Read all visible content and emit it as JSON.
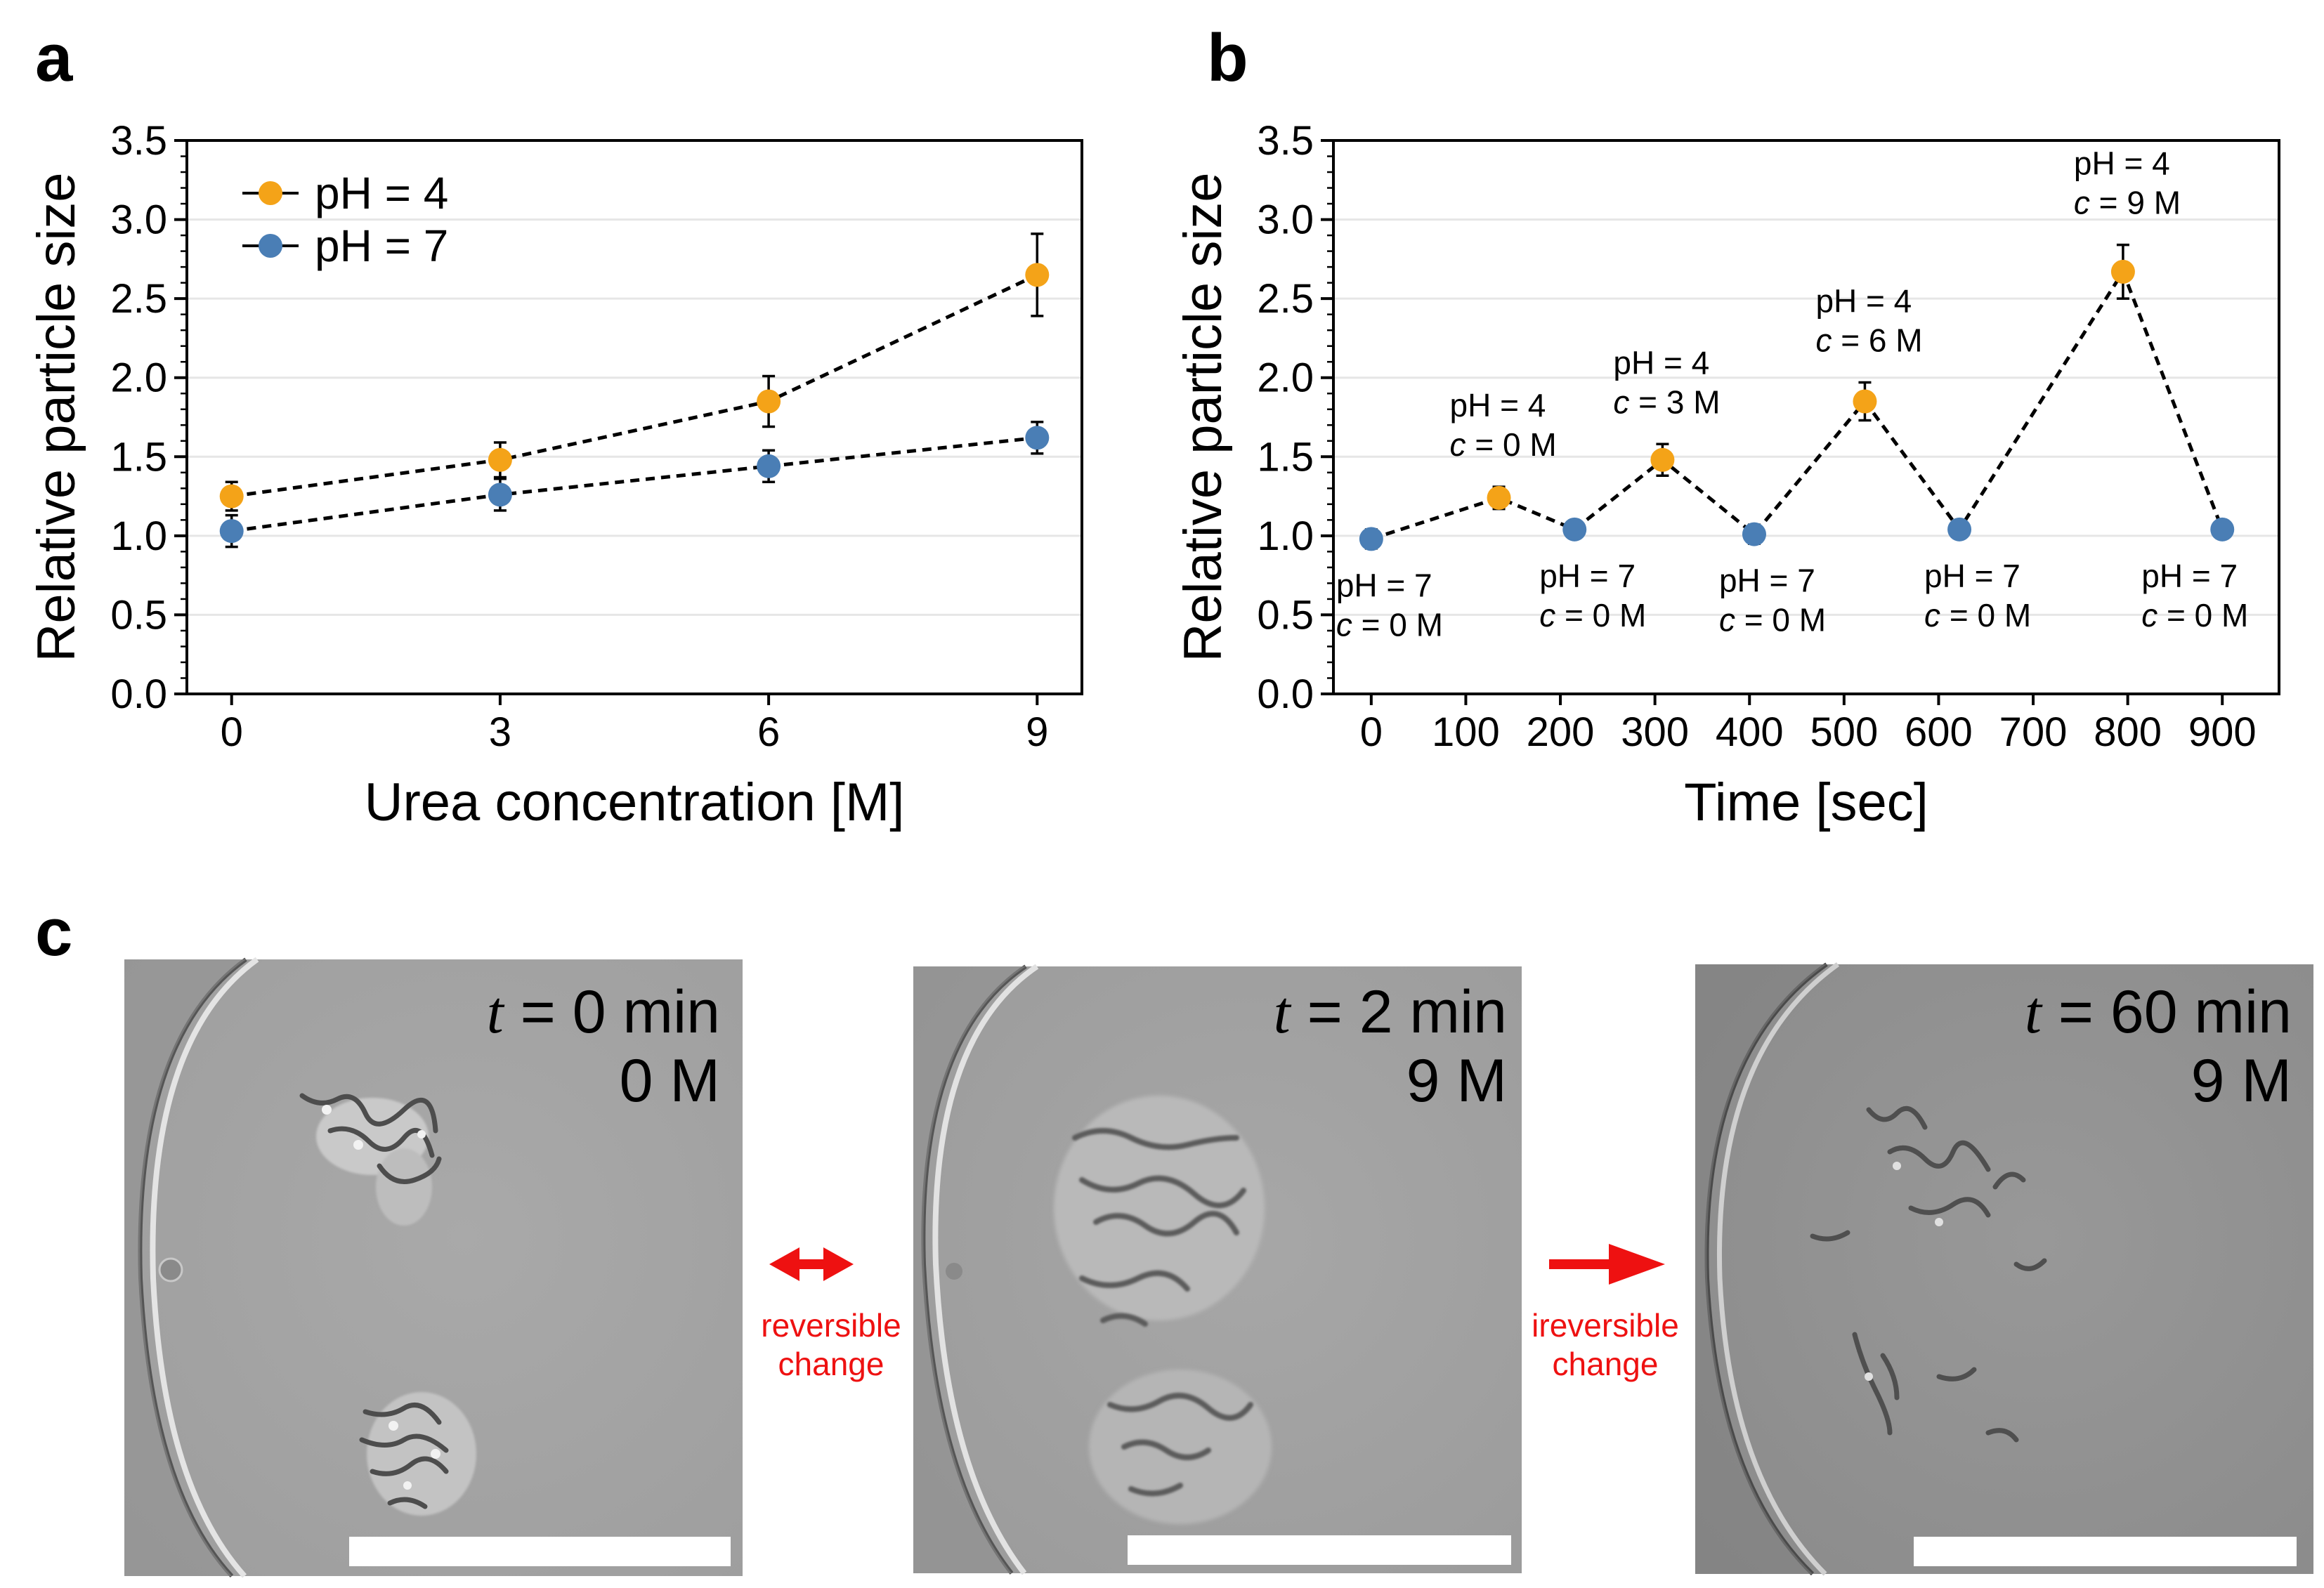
{
  "colors": {
    "ph4": "#f4a318",
    "ph7": "#4a7eb5",
    "arrow": "#ee1111",
    "gridline": "#e6e6e6"
  },
  "panels": {
    "a": "a",
    "b": "b",
    "c": "c"
  },
  "chart_data": [
    {
      "id": "a",
      "type": "line",
      "xlabel": "Urea concentration [M]",
      "ylabel": "Relative particle size",
      "xlim": [
        -0.5,
        9.5
      ],
      "ylim": [
        0.0,
        3.5
      ],
      "xticks": [
        "0",
        "3",
        "6",
        "9"
      ],
      "yticks": [
        "0.0",
        "0.5",
        "1.0",
        "1.5",
        "2.0",
        "2.5",
        "3.0",
        "3.5"
      ],
      "grid": "horizontal",
      "legend_position": "top-left",
      "series": [
        {
          "name": "pH = 4",
          "color_key": "ph4",
          "line_style": "dashed",
          "points": [
            {
              "x": 0,
              "y": 1.25,
              "err": 0.09
            },
            {
              "x": 3,
              "y": 1.48,
              "err": 0.11
            },
            {
              "x": 6,
              "y": 1.85,
              "err": 0.16
            },
            {
              "x": 9,
              "y": 2.65,
              "err": 0.26
            }
          ]
        },
        {
          "name": "pH = 7",
          "color_key": "ph7",
          "line_style": "dashed",
          "points": [
            {
              "x": 0,
              "y": 1.03,
              "err": 0.1
            },
            {
              "x": 3,
              "y": 1.26,
              "err": 0.1
            },
            {
              "x": 6,
              "y": 1.44,
              "err": 0.1
            },
            {
              "x": 9,
              "y": 1.62,
              "err": 0.1
            }
          ]
        }
      ]
    },
    {
      "id": "b",
      "type": "line",
      "xlabel": "Time [sec]",
      "ylabel": "Relative particle size",
      "xlim": [
        -40,
        960
      ],
      "ylim": [
        0.0,
        3.5
      ],
      "xticks": [
        "0",
        "100",
        "200",
        "300",
        "400",
        "500",
        "600",
        "700",
        "800",
        "900"
      ],
      "yticks": [
        "0.0",
        "0.5",
        "1.0",
        "1.5",
        "2.0",
        "2.5",
        "3.0",
        "3.5"
      ],
      "grid": "horizontal",
      "line_style": "dashed",
      "points": [
        {
          "x": 0,
          "y": 0.98,
          "err": 0.06,
          "color_key": "ph7",
          "label_pos": "below",
          "lines": [
            "pH = 7",
            "= 0 M"
          ]
        },
        {
          "x": 135,
          "y": 1.24,
          "err": 0.07,
          "color_key": "ph4",
          "label_pos": "above",
          "lines": [
            "pH = 4",
            "= 0 M"
          ]
        },
        {
          "x": 215,
          "y": 1.04,
          "err": 0.05,
          "color_key": "ph7",
          "label_pos": "below",
          "lines": [
            "pH = 7",
            "= 0 M"
          ]
        },
        {
          "x": 308,
          "y": 1.48,
          "err": 0.1,
          "color_key": "ph4",
          "label_pos": "above",
          "lines": [
            "pH = 4",
            "= 3 M"
          ]
        },
        {
          "x": 405,
          "y": 1.01,
          "err": 0.06,
          "color_key": "ph7",
          "label_pos": "below",
          "lines": [
            "pH = 7",
            "= 0 M"
          ]
        },
        {
          "x": 522,
          "y": 1.85,
          "err": 0.12,
          "color_key": "ph4",
          "label_pos": "above",
          "lines": [
            "pH = 4",
            "= 6 M"
          ]
        },
        {
          "x": 622,
          "y": 1.04,
          "err": 0.05,
          "color_key": "ph7",
          "label_pos": "below",
          "lines": [
            "pH = 7",
            "= 0 M"
          ]
        },
        {
          "x": 795,
          "y": 2.67,
          "err": 0.17,
          "color_key": "ph4",
          "label_pos": "above",
          "lines": [
            "pH = 4",
            "= 9 M"
          ]
        },
        {
          "x": 900,
          "y": 1.04,
          "err": 0.05,
          "color_key": "ph7",
          "label_pos": "below",
          "lines": [
            "pH = 7",
            "= 0 M"
          ]
        }
      ],
      "annotation_variable": "c"
    }
  ],
  "micrographs": [
    {
      "t_var": "t",
      "time": " = 0 min",
      "conc": "0 M"
    },
    {
      "t_var": "t",
      "time": " = 2 min",
      "conc": "9 M"
    },
    {
      "t_var": "t",
      "time": " = 60 min",
      "conc": "9 M"
    }
  ],
  "transitions": [
    {
      "lines": [
        "reversible",
        "change"
      ],
      "arrow": "double"
    },
    {
      "lines": [
        "ireversible",
        "change"
      ],
      "arrow": "single"
    }
  ]
}
